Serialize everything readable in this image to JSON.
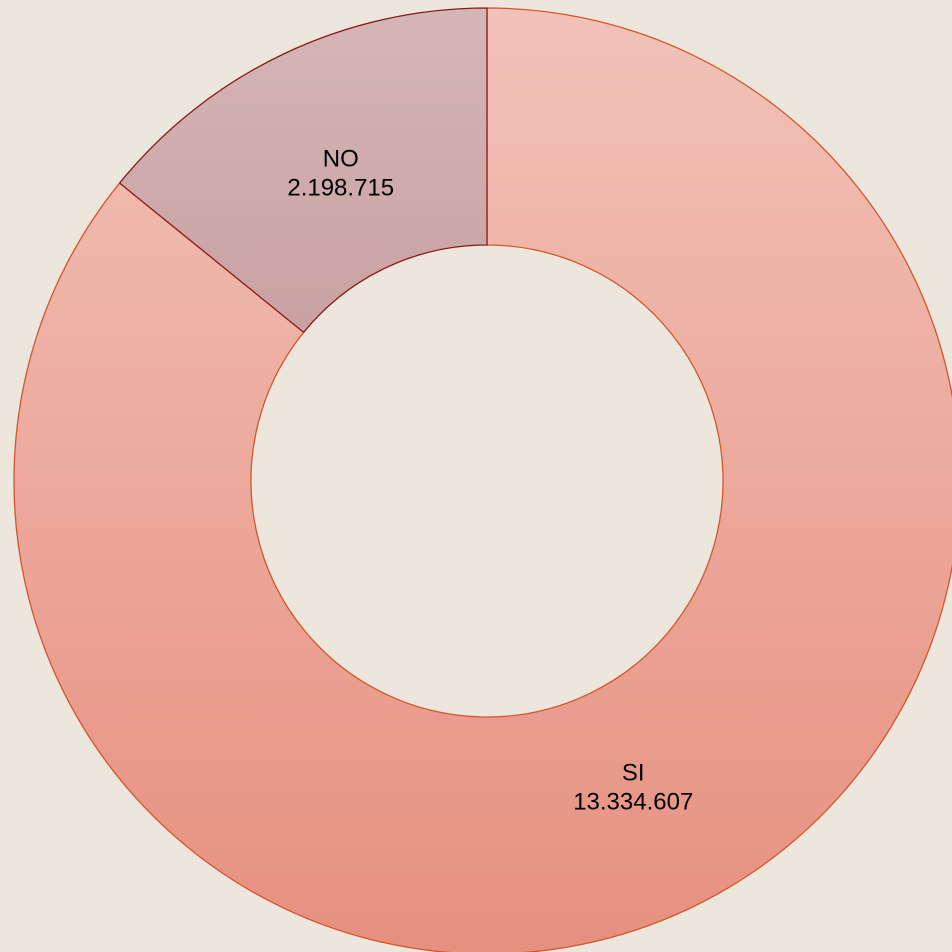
{
  "chart_data": {
    "type": "donut",
    "categories": [
      "SI",
      "NO"
    ],
    "values": [
      13334607,
      2198715
    ],
    "value_labels": [
      "13.334.607",
      "2.198.715"
    ],
    "colors": [
      "#e6907f",
      "#b27a7b"
    ],
    "edgecolors": [
      "#d4562e",
      "#8b1a1a"
    ],
    "start_angle": 0,
    "direction": "clockwise"
  }
}
